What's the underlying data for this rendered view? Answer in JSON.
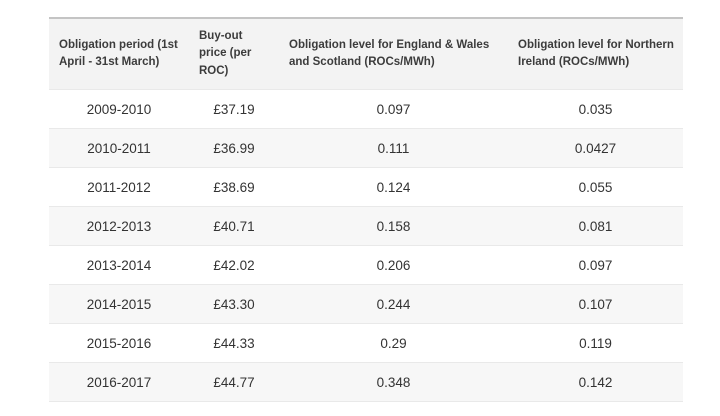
{
  "chart_data": {
    "type": "table",
    "title": "",
    "columns": [
      "Obligation period (1st April - 31st March)",
      "Buy-out price (per ROC)",
      "Obligation level for England & Wales and Scotland (ROCs/MWh)",
      "Obligation level for Northern Ireland (ROCs/MWh)"
    ],
    "rows": [
      [
        "2009-2010",
        "£37.19",
        "0.097",
        "0.035"
      ],
      [
        "2010-2011",
        "£36.99",
        "0.111",
        "0.0427"
      ],
      [
        "2011-2012",
        "£38.69",
        "0.124",
        "0.055"
      ],
      [
        "2012-2013",
        "£40.71",
        "0.158",
        "0.081"
      ],
      [
        "2013-2014",
        "£42.02",
        "0.206",
        "0.097"
      ],
      [
        "2014-2015",
        "£43.30",
        "0.244",
        "0.107"
      ],
      [
        "2015-2016",
        "£44.33",
        "0.29",
        "0.119"
      ],
      [
        "2016-2017",
        "£44.77",
        "0.348",
        "0.142"
      ]
    ]
  },
  "colors": {
    "header_bg": "#f3f3f3",
    "stripe_bg": "#f7f7f7",
    "top_border": "#c4c4c4",
    "row_border": "#e9e9e9",
    "header_text": "#3c3c3c",
    "cell_text": "#333333",
    "page_bg": "#ffffff"
  }
}
